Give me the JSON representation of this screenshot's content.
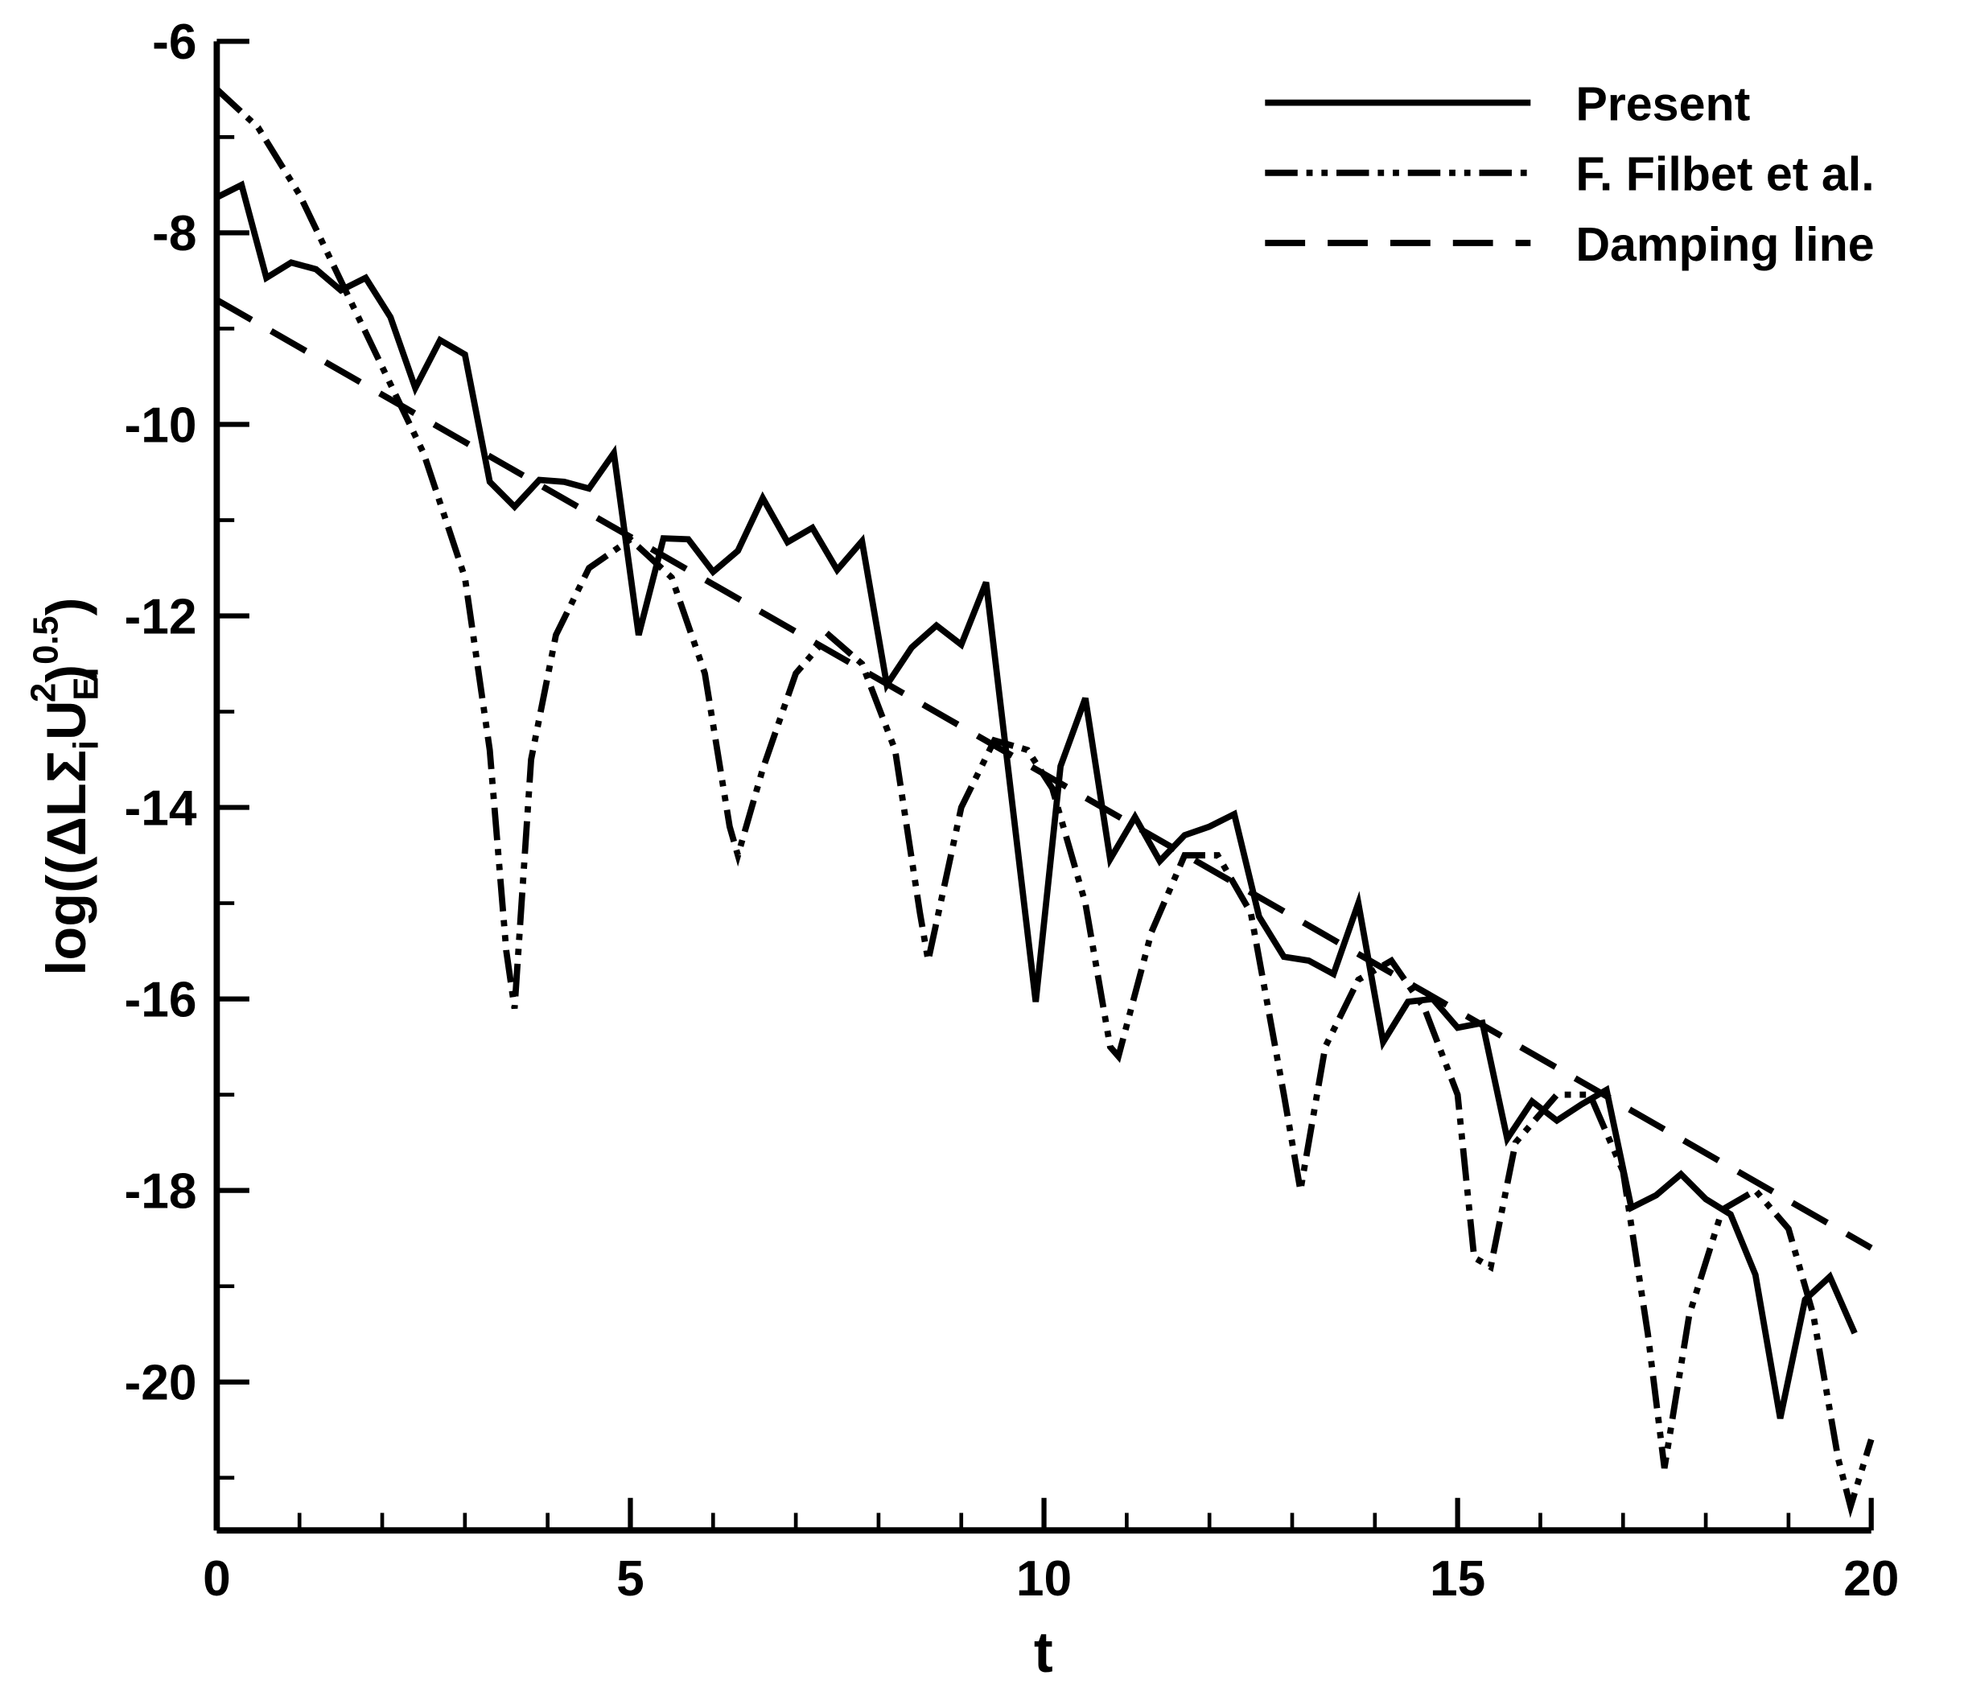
{
  "chart_data": {
    "type": "line",
    "xlabel": "t",
    "ylabel": {
      "prefix": "log((ΔLΣ",
      "sub1": "i",
      "main": "U",
      "sub2": "Ei",
      "sup1": "2",
      "mid": ")",
      "sup2": "0.5",
      "suffix": ")"
    },
    "xlim": [
      0,
      20
    ],
    "xticks": [
      0,
      5,
      10,
      15,
      20
    ],
    "xticks_minor": [
      1,
      2,
      3,
      4,
      6,
      7,
      8,
      9,
      11,
      12,
      13,
      14,
      16,
      17,
      18,
      19
    ],
    "ylim": [
      -21.55,
      -6
    ],
    "yticks": [
      -6,
      -8,
      -10,
      -12,
      -14,
      -16,
      -18,
      -20
    ],
    "yticks_minor": [
      -7,
      -9,
      -11,
      -13,
      -15,
      -17,
      -19,
      -21
    ],
    "legend": "top-right",
    "series": [
      {
        "name": "Present",
        "color": "#000000",
        "style": "solid",
        "x": [
          0,
          0.3,
          0.6,
          0.9,
          1.2,
          1.5,
          1.8,
          2.1,
          2.4,
          2.7,
          3.0,
          3.3,
          3.6,
          3.9,
          4.2,
          4.5,
          4.8,
          5.1,
          5.4,
          5.7,
          6.0,
          6.3,
          6.6,
          6.9,
          7.2,
          7.5,
          7.8,
          8.1,
          8.4,
          8.7,
          9.0,
          9.3,
          9.9,
          10.2,
          10.5,
          10.8,
          11.1,
          11.4,
          11.7,
          12.0,
          12.3,
          12.6,
          12.9,
          13.2,
          13.5,
          13.8,
          14.1,
          14.4,
          14.7,
          15.0,
          15.3,
          15.6,
          15.9,
          16.2,
          16.5,
          16.8,
          17.1,
          17.4,
          17.7,
          18.0,
          18.3,
          18.6,
          18.9,
          19.2,
          19.5,
          19.8
        ],
        "values": [
          -7.63,
          -7.5,
          -8.47,
          -8.31,
          -8.38,
          -8.6,
          -8.47,
          -8.88,
          -9.62,
          -9.12,
          -9.27,
          -10.6,
          -10.86,
          -10.58,
          -10.6,
          -10.67,
          -10.3,
          -12.2,
          -11.19,
          -11.2,
          -11.54,
          -11.32,
          -10.77,
          -11.23,
          -11.08,
          -11.52,
          -11.22,
          -12.72,
          -12.33,
          -12.1,
          -12.3,
          -11.65,
          -16.03,
          -13.57,
          -12.86,
          -14.54,
          -14.1,
          -14.56,
          -14.29,
          -14.2,
          -14.07,
          -15.14,
          -15.56,
          -15.6,
          -15.74,
          -15.0,
          -16.45,
          -16.03,
          -16.0,
          -16.3,
          -16.25,
          -17.46,
          -17.07,
          -17.27,
          -17.1,
          -16.95,
          -18.18,
          -18.05,
          -17.83,
          -18.09,
          -18.25,
          -18.88,
          -20.38,
          -19.14,
          -18.9,
          -19.49
        ]
      },
      {
        "name": "F. Filbet et al.",
        "color": "#000000",
        "style": "dashdotdot",
        "x": [
          0,
          0.5,
          1.0,
          1.5,
          2.0,
          2.5,
          3.0,
          3.3,
          3.5,
          3.6,
          3.8,
          4.1,
          4.5,
          5.0,
          5.5,
          5.9,
          6.2,
          6.3,
          6.6,
          7.0,
          7.4,
          7.8,
          8.2,
          8.5,
          8.6,
          9.0,
          9.4,
          9.8,
          10.1,
          10.5,
          10.8,
          10.9,
          11.3,
          11.7,
          12.1,
          12.5,
          12.9,
          13.1,
          13.4,
          13.8,
          14.2,
          14.6,
          15.0,
          15.2,
          15.4,
          15.7,
          16.2,
          16.6,
          17.0,
          17.3,
          17.5,
          17.8,
          18.2,
          18.6,
          19.0,
          19.3,
          19.6,
          19.75,
          20.0
        ],
        "values": [
          -6.5,
          -6.9,
          -7.6,
          -8.5,
          -9.4,
          -10.3,
          -11.6,
          -13.4,
          -15.5,
          -16.1,
          -13.5,
          -12.2,
          -11.5,
          -11.2,
          -11.6,
          -12.6,
          -14.2,
          -14.5,
          -13.6,
          -12.6,
          -12.2,
          -12.5,
          -13.4,
          -15.1,
          -15.6,
          -14.0,
          -13.3,
          -13.4,
          -13.8,
          -15.0,
          -16.5,
          -16.6,
          -15.3,
          -14.5,
          -14.5,
          -15.1,
          -17.0,
          -18.0,
          -16.5,
          -15.8,
          -15.6,
          -16.1,
          -17.0,
          -18.7,
          -18.8,
          -17.5,
          -17.0,
          -17.0,
          -17.8,
          -19.5,
          -20.9,
          -19.3,
          -18.2,
          -18.0,
          -18.4,
          -19.3,
          -20.8,
          -21.3,
          -20.6
        ]
      },
      {
        "name": "Damping line",
        "color": "#000000",
        "style": "dashed",
        "x": [
          0,
          20
        ],
        "values": [
          -8.7,
          -18.6
        ]
      }
    ]
  }
}
